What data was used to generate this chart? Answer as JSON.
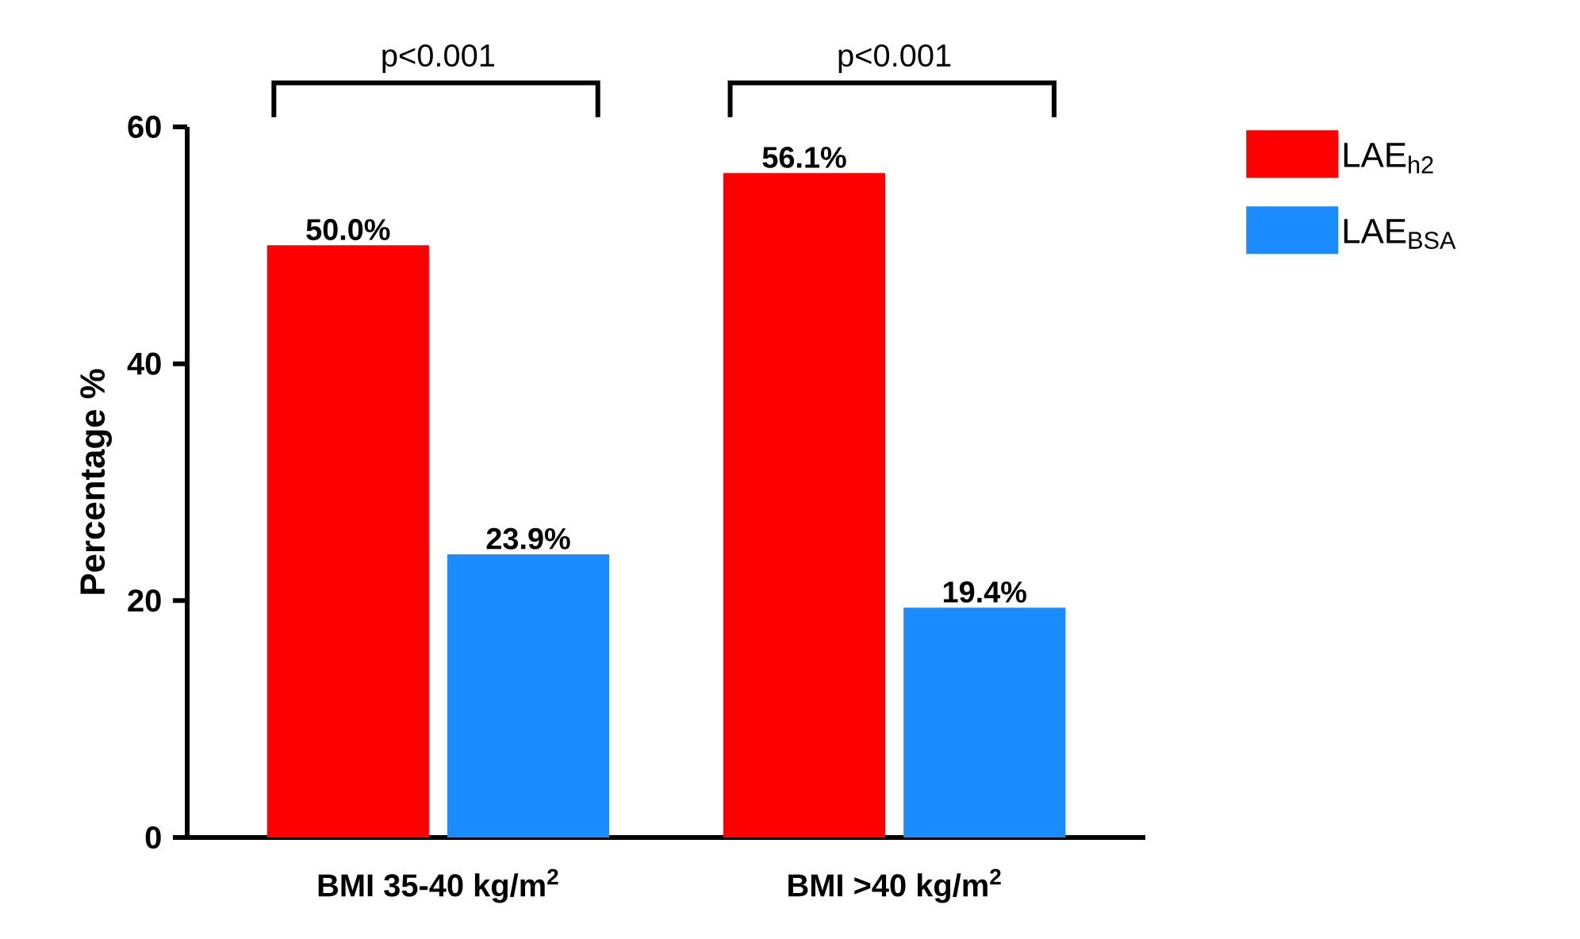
{
  "chart_data": {
    "type": "bar",
    "categories": [
      "BMI 35-40 kg/m$^{2}$",
      "BMI >40 kg/m$^{2}$"
    ],
    "ylabel": "Percentage %",
    "series": [
      {
        "name": "LAE$_{h2}$",
        "color": "#ff0000",
        "values": [
          50.0,
          56.1
        ],
        "value_labels": [
          "50.0%",
          "56.1%"
        ]
      },
      {
        "name": "LAE$_{BSA}$",
        "color": "#1a8cff",
        "values": [
          23.9,
          19.4
        ],
        "value_labels": [
          "23.9%",
          "19.4%"
        ]
      }
    ],
    "ylim": [
      0,
      60
    ],
    "yticks": [
      0,
      20,
      40,
      60
    ],
    "annotations": [
      "p<0.001",
      "p<0.001"
    ],
    "legend": "right",
    "grid": false
  }
}
